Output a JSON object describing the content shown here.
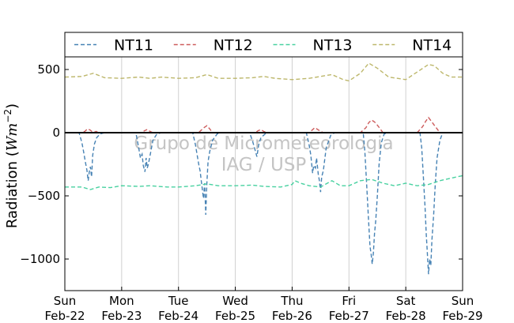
{
  "chart_data": {
    "type": "line",
    "title": "",
    "xlabel": "",
    "ylabel_main": "Radiation (",
    "ylabel_unit": "Wm",
    "ylabel_exp": "−2",
    "ylabel_close": ")",
    "ylim": [
      -1250,
      600
    ],
    "xlim": [
      0,
      7
    ],
    "yticks": [
      500,
      0,
      -500,
      -1000
    ],
    "ytick_labels": [
      "500",
      "0",
      "−500",
      "−1000"
    ],
    "xticks": [
      {
        "day": "Sun",
        "date": "Feb-22"
      },
      {
        "day": "Mon",
        "date": "Feb-23"
      },
      {
        "day": "Tue",
        "date": "Feb-24"
      },
      {
        "day": "Wed",
        "date": "Feb-25"
      },
      {
        "day": "Thu",
        "date": "Feb-26"
      },
      {
        "day": "Fri",
        "date": "Feb-27"
      },
      {
        "day": "Sat",
        "date": "Feb-28"
      },
      {
        "day": "Sun",
        "date": "Feb-29"
      }
    ],
    "grid": "vertical",
    "legend_position": "top",
    "watermark": [
      "Grupo de Micrometeorologia",
      "IAG / USP"
    ],
    "series": [
      {
        "name": "NT11",
        "color": "#4682b4",
        "points": [
          [
            0,
            0
          ],
          [
            0.25,
            0
          ],
          [
            0.3,
            -80
          ],
          [
            0.33,
            -150
          ],
          [
            0.36,
            -230
          ],
          [
            0.39,
            -300
          ],
          [
            0.41,
            -380
          ],
          [
            0.43,
            -310
          ],
          [
            0.45,
            -270
          ],
          [
            0.47,
            -350
          ],
          [
            0.49,
            -180
          ],
          [
            0.52,
            -90
          ],
          [
            0.56,
            -40
          ],
          [
            0.62,
            -10
          ],
          [
            0.7,
            0
          ],
          [
            1.25,
            0
          ],
          [
            1.3,
            -120
          ],
          [
            1.33,
            -200
          ],
          [
            1.36,
            -170
          ],
          [
            1.38,
            -260
          ],
          [
            1.41,
            -310
          ],
          [
            1.43,
            -200
          ],
          [
            1.45,
            -280
          ],
          [
            1.47,
            -250
          ],
          [
            1.5,
            -180
          ],
          [
            1.55,
            -60
          ],
          [
            1.62,
            -10
          ],
          [
            1.7,
            0
          ],
          [
            2.25,
            0
          ],
          [
            2.3,
            -100
          ],
          [
            2.33,
            -180
          ],
          [
            2.36,
            -260
          ],
          [
            2.38,
            -300
          ],
          [
            2.4,
            -380
          ],
          [
            2.42,
            -450
          ],
          [
            2.44,
            -520
          ],
          [
            2.46,
            -400
          ],
          [
            2.48,
            -650
          ],
          [
            2.5,
            -400
          ],
          [
            2.52,
            -230
          ],
          [
            2.55,
            -150
          ],
          [
            2.6,
            -60
          ],
          [
            2.68,
            -10
          ],
          [
            2.75,
            0
          ],
          [
            3.25,
            0
          ],
          [
            3.3,
            -60
          ],
          [
            3.35,
            -140
          ],
          [
            3.38,
            -190
          ],
          [
            3.41,
            -100
          ],
          [
            3.45,
            -40
          ],
          [
            3.55,
            0
          ],
          [
            4.25,
            0
          ],
          [
            4.3,
            -100
          ],
          [
            4.33,
            -180
          ],
          [
            4.36,
            -320
          ],
          [
            4.38,
            -260
          ],
          [
            4.41,
            -280
          ],
          [
            4.43,
            -200
          ],
          [
            4.46,
            -330
          ],
          [
            4.48,
            -380
          ],
          [
            4.5,
            -470
          ],
          [
            4.52,
            -350
          ],
          [
            4.55,
            -300
          ],
          [
            4.6,
            -120
          ],
          [
            4.68,
            -20
          ],
          [
            4.75,
            0
          ],
          [
            5.25,
            0
          ],
          [
            5.28,
            -150
          ],
          [
            5.31,
            -400
          ],
          [
            5.34,
            -650
          ],
          [
            5.37,
            -900
          ],
          [
            5.39,
            -960
          ],
          [
            5.41,
            -1040
          ],
          [
            5.43,
            -950
          ],
          [
            5.45,
            -800
          ],
          [
            5.47,
            -700
          ],
          [
            5.5,
            -500
          ],
          [
            5.53,
            -250
          ],
          [
            5.57,
            -80
          ],
          [
            5.62,
            -10
          ],
          [
            5.7,
            0
          ],
          [
            6.25,
            0
          ],
          [
            6.28,
            -120
          ],
          [
            6.31,
            -350
          ],
          [
            6.34,
            -600
          ],
          [
            6.36,
            -800
          ],
          [
            6.38,
            -950
          ],
          [
            6.4,
            -1120
          ],
          [
            6.42,
            -1000
          ],
          [
            6.44,
            -1050
          ],
          [
            6.46,
            -850
          ],
          [
            6.49,
            -650
          ],
          [
            6.52,
            -400
          ],
          [
            6.55,
            -200
          ],
          [
            6.6,
            -60
          ],
          [
            6.65,
            0
          ]
        ]
      },
      {
        "name": "NT12",
        "color": "#cd5c5c",
        "points": [
          [
            0,
            0
          ],
          [
            0.3,
            0
          ],
          [
            0.35,
            10
          ],
          [
            0.4,
            30
          ],
          [
            0.45,
            20
          ],
          [
            0.5,
            0
          ],
          [
            0.55,
            10
          ],
          [
            0.6,
            0
          ],
          [
            1.35,
            0
          ],
          [
            1.4,
            15
          ],
          [
            1.45,
            25
          ],
          [
            1.5,
            10
          ],
          [
            1.55,
            0
          ],
          [
            2.35,
            0
          ],
          [
            2.4,
            20
          ],
          [
            2.45,
            40
          ],
          [
            2.5,
            55
          ],
          [
            2.55,
            30
          ],
          [
            2.6,
            0
          ],
          [
            3.35,
            0
          ],
          [
            3.4,
            15
          ],
          [
            3.45,
            25
          ],
          [
            3.5,
            10
          ],
          [
            3.55,
            0
          ],
          [
            4.3,
            0
          ],
          [
            4.35,
            20
          ],
          [
            4.4,
            40
          ],
          [
            4.45,
            25
          ],
          [
            4.5,
            10
          ],
          [
            4.55,
            0
          ],
          [
            5.2,
            0
          ],
          [
            5.3,
            40
          ],
          [
            5.35,
            80
          ],
          [
            5.4,
            100
          ],
          [
            5.45,
            85
          ],
          [
            5.5,
            60
          ],
          [
            5.55,
            30
          ],
          [
            5.6,
            0
          ],
          [
            6.2,
            0
          ],
          [
            6.3,
            50
          ],
          [
            6.35,
            90
          ],
          [
            6.4,
            120
          ],
          [
            6.45,
            90
          ],
          [
            6.5,
            60
          ],
          [
            6.55,
            30
          ],
          [
            6.6,
            0
          ]
        ]
      },
      {
        "name": "NT13",
        "color": "#48d1a0",
        "points": [
          [
            0,
            -430
          ],
          [
            0.3,
            -430
          ],
          [
            0.45,
            -450
          ],
          [
            0.6,
            -430
          ],
          [
            0.8,
            -435
          ],
          [
            1.0,
            -420
          ],
          [
            1.3,
            -425
          ],
          [
            1.5,
            -420
          ],
          [
            1.8,
            -430
          ],
          [
            2.0,
            -430
          ],
          [
            2.3,
            -420
          ],
          [
            2.5,
            -405
          ],
          [
            2.7,
            -420
          ],
          [
            3.0,
            -420
          ],
          [
            3.3,
            -415
          ],
          [
            3.5,
            -425
          ],
          [
            3.8,
            -430
          ],
          [
            4.0,
            -410
          ],
          [
            4.05,
            -380
          ],
          [
            4.15,
            -400
          ],
          [
            4.3,
            -420
          ],
          [
            4.5,
            -430
          ],
          [
            4.7,
            -380
          ],
          [
            4.85,
            -420
          ],
          [
            5.0,
            -420
          ],
          [
            5.2,
            -380
          ],
          [
            5.4,
            -370
          ],
          [
            5.6,
            -400
          ],
          [
            5.8,
            -420
          ],
          [
            6.0,
            -400
          ],
          [
            6.2,
            -420
          ],
          [
            6.4,
            -410
          ],
          [
            6.6,
            -380
          ],
          [
            6.8,
            -360
          ],
          [
            7.0,
            -340
          ]
        ]
      },
      {
        "name": "NT14",
        "color": "#bdb76b",
        "points": [
          [
            0,
            440
          ],
          [
            0.3,
            445
          ],
          [
            0.5,
            470
          ],
          [
            0.7,
            435
          ],
          [
            1.0,
            430
          ],
          [
            1.3,
            440
          ],
          [
            1.5,
            430
          ],
          [
            1.7,
            440
          ],
          [
            2.0,
            430
          ],
          [
            2.3,
            435
          ],
          [
            2.5,
            460
          ],
          [
            2.7,
            430
          ],
          [
            3.0,
            430
          ],
          [
            3.3,
            435
          ],
          [
            3.5,
            445
          ],
          [
            3.7,
            430
          ],
          [
            4.0,
            420
          ],
          [
            4.3,
            430
          ],
          [
            4.5,
            445
          ],
          [
            4.7,
            460
          ],
          [
            4.9,
            420
          ],
          [
            5.0,
            410
          ],
          [
            5.2,
            470
          ],
          [
            5.35,
            550
          ],
          [
            5.5,
            510
          ],
          [
            5.7,
            440
          ],
          [
            6.0,
            420
          ],
          [
            6.2,
            480
          ],
          [
            6.4,
            540
          ],
          [
            6.5,
            530
          ],
          [
            6.65,
            470
          ],
          [
            6.8,
            440
          ],
          [
            7.0,
            440
          ]
        ]
      }
    ]
  }
}
